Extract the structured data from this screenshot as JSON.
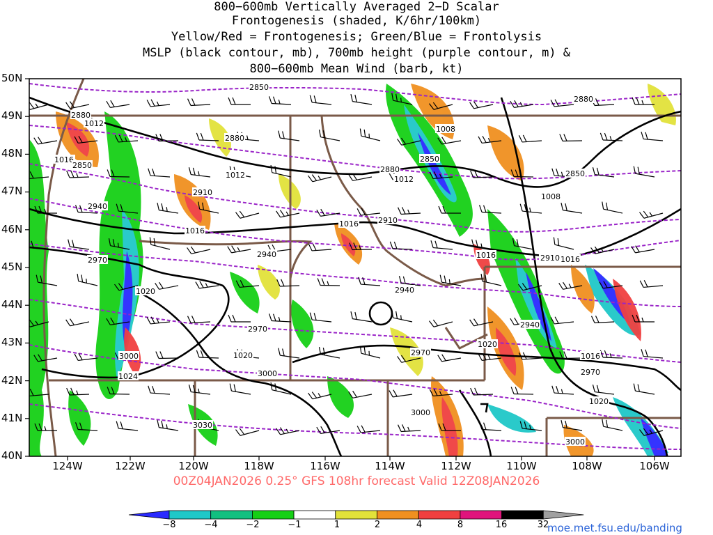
{
  "title_lines": [
    "800−600mb Vertically Averaged 2−D Scalar",
    "Frontogenesis (shaded, K/6hr/100km)",
    "Yellow/Red = Frontogenesis;  Green/Blue = Frontolysis",
    "MSLP (black contour, mb), 700mb height (purple contour, m) &",
    "800−600mb Mean Wind (barb, kt)"
  ],
  "lat_labels": [
    "50N",
    "49N",
    "48N",
    "47N",
    "46N",
    "45N",
    "44N",
    "43N",
    "42N",
    "41N",
    "40N"
  ],
  "lon_labels": [
    "124W",
    "122W",
    "120W",
    "118W",
    "116W",
    "114W",
    "112W",
    "110W",
    "108W",
    "106W"
  ],
  "footer": "00Z04JAN2026 0.25° GFS 108hr forecast Valid 12Z08JAN2026",
  "colorbar": {
    "labels": [
      "−8",
      "−4",
      "−2",
      "−1",
      "1",
      "2",
      "4",
      "8",
      "16",
      "32"
    ],
    "colors": [
      "#2a2aff",
      "#1fc8c8",
      "#12c080",
      "#16d016",
      "#ffffff",
      "#e2e23a",
      "#f09020",
      "#f04040",
      "#e0147c",
      "#000000",
      "#a0a0a0"
    ]
  },
  "credit": "moe.met.fsu.edu/banding",
  "mslp_labels": [
    {
      "t": "1012"
    },
    {
      "t": "1016"
    },
    {
      "t": "1012"
    },
    {
      "t": "1008"
    },
    {
      "t": "1016"
    },
    {
      "t": "1016"
    },
    {
      "t": "1012"
    },
    {
      "t": "1008"
    },
    {
      "t": "1016"
    },
    {
      "t": "1020"
    },
    {
      "t": "1016"
    },
    {
      "t": "1020"
    },
    {
      "t": "1020"
    },
    {
      "t": "1024"
    },
    {
      "t": "1016"
    },
    {
      "t": "1020"
    },
    {
      "t": "1016"
    }
  ],
  "height_labels": [
    {
      "t": "2850"
    },
    {
      "t": "2880"
    },
    {
      "t": "2880"
    },
    {
      "t": "2850"
    },
    {
      "t": "2850"
    },
    {
      "t": "2910"
    },
    {
      "t": "2880"
    },
    {
      "t": "2880"
    },
    {
      "t": "2850"
    },
    {
      "t": "2940"
    },
    {
      "t": "2910"
    },
    {
      "t": "2970"
    },
    {
      "t": "2940"
    },
    {
      "t": "2910"
    },
    {
      "t": "2940"
    },
    {
      "t": "2940"
    },
    {
      "t": "2970"
    },
    {
      "t": "3000"
    },
    {
      "t": "3000"
    },
    {
      "t": "2970"
    },
    {
      "t": "3000"
    },
    {
      "t": "2970"
    },
    {
      "t": "3030"
    },
    {
      "t": "3000"
    },
    {
      "t": "2910"
    }
  ]
}
